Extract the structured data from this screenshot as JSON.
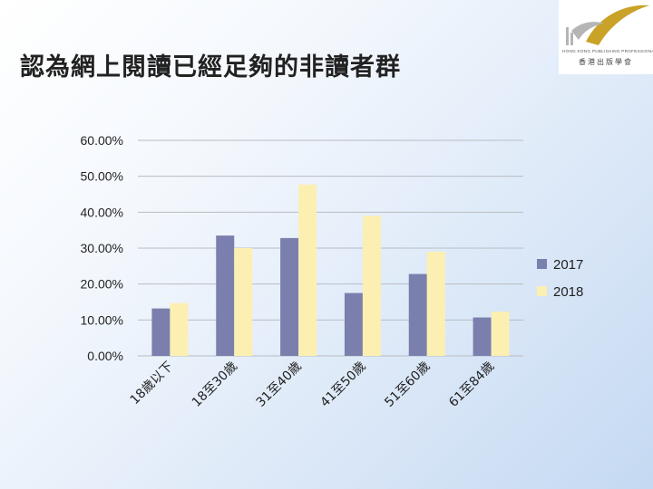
{
  "slide": {
    "title": "認為網上閱讀已經足夠的非讀者群"
  },
  "logo": {
    "name_en": "HONG KONG PUBLISHING PROFESSIONALS SOCIETY",
    "name_zh": "香港出版學會",
    "colors": {
      "gold": "#c9a227",
      "grey": "#b5b5b5"
    }
  },
  "chart_data": {
    "type": "bar",
    "title": "",
    "xlabel": "",
    "ylabel": "",
    "categories": [
      "18歲以下",
      "18至30歲",
      "31至40歲",
      "41至50歲",
      "51至60歲",
      "61至84歲"
    ],
    "series": [
      {
        "name": "2017",
        "color": "#7a7fad",
        "values": [
          0.132,
          0.335,
          0.328,
          0.175,
          0.228,
          0.107
        ]
      },
      {
        "name": "2018",
        "color": "#fcefb2",
        "values": [
          0.147,
          0.3,
          0.477,
          0.39,
          0.29,
          0.123
        ]
      }
    ],
    "ylim": [
      0,
      0.6
    ],
    "yticks": [
      0,
      0.1,
      0.2,
      0.3,
      0.4,
      0.5,
      0.6
    ],
    "ytick_labels": [
      "0.00%",
      "10.00%",
      "20.00%",
      "30.00%",
      "40.00%",
      "50.00%",
      "60.00%"
    ],
    "grid": true,
    "legend_position": "right"
  }
}
